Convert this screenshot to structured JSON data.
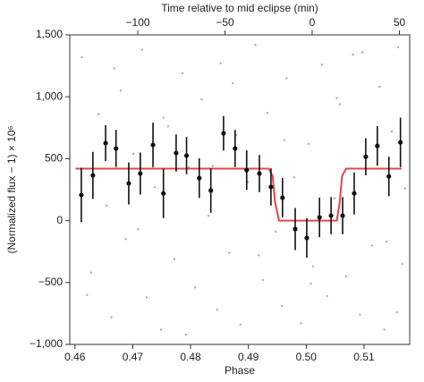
{
  "chart_data": {
    "type": "scatter",
    "xlabel": "Phase",
    "ylabel": "(Normalized flux − 1) × 10⁶",
    "x2label": "Time relative to mid eclipse (min)",
    "xlim": [
      0.4591,
      0.5179
    ],
    "xticks": [
      0.46,
      0.47,
      0.48,
      0.49,
      {
        "value": 0.5,
        "label": "0.50"
      },
      0.51
    ],
    "x2lim": [
      -139,
      55.9
    ],
    "x2ticks": [
      {
        "value": -100,
        "label": "−100"
      },
      {
        "value": -50,
        "label": "−50"
      },
      0,
      50
    ],
    "ylim": [
      -1000,
      1500
    ],
    "yticks": [
      {
        "value": -1000,
        "label": "−1,000"
      },
      {
        "value": -500,
        "label": "−500"
      },
      0,
      500,
      {
        "value": 1000,
        "label": "1,000"
      },
      {
        "value": 1500,
        "label": "1,500"
      }
    ],
    "series": [
      {
        "type": "scatter",
        "color": "#aaaaaa",
        "x": [
          0.4612,
          0.4628,
          0.4641,
          0.4655,
          0.4663,
          0.4679,
          0.4688,
          0.4701,
          0.4716,
          0.4724,
          0.4738,
          0.4749,
          0.4761,
          0.4772,
          0.4786,
          0.4797,
          0.4808,
          0.4819,
          0.4831,
          0.4846,
          0.4852,
          0.4867,
          0.4879,
          0.4886,
          0.4899,
          0.4912,
          0.4925,
          0.4933,
          0.4947,
          0.4958,
          0.4966,
          0.4979,
          0.4991,
          0.5004,
          0.5012,
          0.5027,
          0.5036,
          0.5049,
          0.5058,
          0.5069,
          0.5081,
          0.5093,
          0.5102,
          0.5114,
          0.5127,
          0.5135,
          0.5148,
          0.5159,
          0.5166,
          0.5171,
          0.4621,
          0.4668,
          0.4709,
          0.4753,
          0.4792,
          0.4838,
          0.4873,
          0.4918,
          0.4962,
          0.5008,
          0.5053,
          0.5097,
          0.5139,
          0.5157
        ],
        "values": [
          1320,
          -420,
          860,
          120,
          -780,
          1050,
          -150,
          540,
          1380,
          -620,
          270,
          -880,
          760,
          -310,
          1190,
          430,
          -540,
          980,
          40,
          -720,
          1270,
          -260,
          690,
          -840,
          310,
          1420,
          -480,
          870,
          -90,
          -690,
          1150,
          350,
          -830,
          620,
          -370,
          1260,
          -610,
          180,
          940,
          -450,
          1340,
          -760,
          510,
          -200,
          1080,
          -880,
          720,
          1400,
          -350,
          260,
          -600,
          1230,
          -70,
          830,
          -920,
          440,
          1110,
          -280,
          650,
          -510,
          990,
          1360,
          -170,
          -740
        ]
      },
      {
        "type": "errorbar",
        "color": "#111111",
        "x": [
          0.4611,
          0.4631,
          0.4653,
          0.4671,
          0.4693,
          0.4713,
          0.4735,
          0.4753,
          0.4775,
          0.4793,
          0.4815,
          0.4835,
          0.4857,
          0.4877,
          0.4897,
          0.4919,
          0.4939,
          0.4959,
          0.4981,
          0.5001,
          0.5023,
          0.5043,
          0.5063,
          0.5083,
          0.5103,
          0.5123,
          0.5143,
          0.5163
        ],
        "values": [
          207,
          365,
          626,
          583,
          300,
          380,
          611,
          220,
          546,
          525,
          343,
          243,
          705,
          583,
          408,
          380,
          272,
          185,
          -68,
          -140,
          26,
          40,
          40,
          220,
          516,
          603,
          357,
          632
        ],
        "errors": [
          220,
          190,
          145,
          150,
          170,
          170,
          180,
          200,
          150,
          150,
          160,
          180,
          140,
          150,
          160,
          150,
          150,
          160,
          170,
          160,
          160,
          150,
          150,
          170,
          150,
          160,
          160,
          200
        ]
      },
      {
        "type": "line",
        "color": "#e0474c",
        "x": [
          0.4601,
          0.4935,
          0.4942,
          0.4946,
          0.4953,
          0.5053,
          0.5058,
          0.5062,
          0.5069,
          0.5165
        ],
        "values": [
          420,
          420,
          360,
          150,
          0,
          0,
          150,
          360,
          420,
          420
        ]
      }
    ]
  }
}
